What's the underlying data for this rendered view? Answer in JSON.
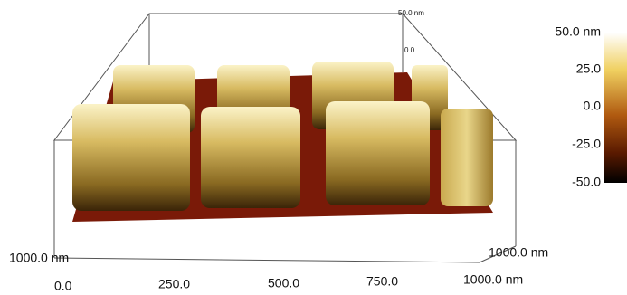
{
  "scene": {
    "z_axis": {
      "top": "50.0 nm",
      "zero": "0.0"
    },
    "x_axis": {
      "ticks": [
        "0.0",
        "250.0",
        "500.0",
        "750.0",
        "1000.0 nm"
      ]
    },
    "y_axis": {
      "start": "1000.0 nm",
      "end": "1000.0 nm"
    }
  },
  "colorbar": {
    "labels": [
      "50.0 nm",
      "25.0",
      "0.0",
      "-25.0",
      "-50.0"
    ]
  }
}
